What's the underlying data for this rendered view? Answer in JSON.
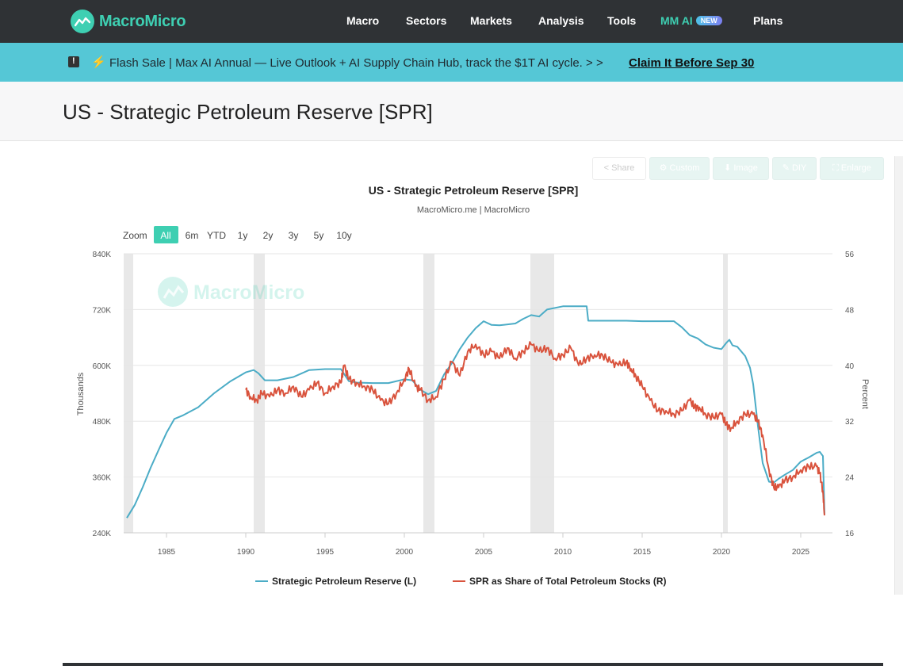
{
  "brand": {
    "name": "MacroMicro"
  },
  "nav": {
    "items": [
      {
        "label": "Macro"
      },
      {
        "label": "Sectors"
      },
      {
        "label": "Markets"
      },
      {
        "label": "Analysis"
      },
      {
        "label": "Tools"
      },
      {
        "label": "MM AI",
        "badge": "NEW"
      },
      {
        "label": "Plans"
      }
    ]
  },
  "promo": {
    "text": "Flash Sale | Max AI Annual — Live Outlook + AI Supply Chain Hub, track the $1T AI cycle. > >",
    "cta": "Claim It Before Sep 30"
  },
  "page": {
    "title": "US - Strategic Petroleum Reserve [SPR]"
  },
  "toolbar": {
    "share": "Share",
    "custom": "Custom",
    "image": "Image",
    "diy": "DIY",
    "enlarge": "Enlarge"
  },
  "zoom": {
    "label": "Zoom",
    "options": [
      "All",
      "6m",
      "YTD",
      "1y",
      "2y",
      "3y",
      "5y",
      "10y"
    ],
    "selected": "All"
  },
  "watermark": "MacroMicro",
  "colors": {
    "spr": "#4bacc6",
    "share": "#d9533d",
    "accent": "#3ecfb2",
    "recession": "#e8e8e8"
  },
  "chart_data": {
    "type": "line",
    "title": "US - Strategic Petroleum Reserve [SPR]",
    "subtitle": "MacroMicro.me | MacroMicro",
    "ylabel_left": "Thousands",
    "ylabel_right": "Percent",
    "xlim": [
      1982.3,
      2027.0
    ],
    "ylim_left": [
      240,
      840
    ],
    "ylim_right": [
      16,
      56
    ],
    "x_ticks": [
      "1985",
      "1990",
      "1995",
      "2000",
      "2005",
      "2010",
      "2015",
      "2020",
      "2025"
    ],
    "y_ticks_left": [
      "240K",
      "360K",
      "480K",
      "600K",
      "720K",
      "840K"
    ],
    "y_ticks_right": [
      "16",
      "24",
      "32",
      "40",
      "48",
      "56"
    ],
    "grid": "horizontal",
    "legend": "bottom-center",
    "recessions": [
      [
        1982.3,
        1982.9
      ],
      [
        1990.5,
        1991.2
      ],
      [
        2001.2,
        2001.9
      ],
      [
        2007.95,
        2009.45
      ],
      [
        2020.1,
        2020.4
      ]
    ],
    "series": [
      {
        "name": "Strategic Petroleum Reserve (L)",
        "axis": "left",
        "x": [
          1982.5,
          1983.0,
          1983.5,
          1984.0,
          1984.5,
          1985.0,
          1985.5,
          1986.0,
          1987.0,
          1988.0,
          1989.0,
          1990.0,
          1990.5,
          1990.8,
          1991.2,
          1992.0,
          1993.0,
          1994.0,
          1995.0,
          1996.0,
          1996.5,
          1997.0,
          1998.0,
          1999.0,
          2000.0,
          2000.5,
          2001.0,
          2001.5,
          2002.0,
          2002.5,
          2003.0,
          2003.5,
          2004.0,
          2004.5,
          2005.0,
          2005.5,
          2006.0,
          2007.0,
          2007.5,
          2008.0,
          2008.5,
          2009.0,
          2010.0,
          2011.0,
          2011.5,
          2011.6,
          2012.0,
          2013.0,
          2014.0,
          2015.0,
          2016.0,
          2017.0,
          2017.5,
          2018.0,
          2018.5,
          2019.0,
          2019.5,
          2020.0,
          2020.3,
          2020.5,
          2020.7,
          2021.0,
          2021.5,
          2021.8,
          2022.0,
          2022.3,
          2022.6,
          2023.0,
          2023.3,
          2023.6,
          2024.0,
          2024.5,
          2025.0,
          2025.5,
          2026.0,
          2026.2,
          2026.4,
          2026.5
        ],
        "values": [
          272,
          300,
          338,
          380,
          418,
          455,
          485,
          492,
          510,
          540,
          565,
          585,
          590,
          583,
          568,
          568,
          575,
          590,
          592,
          592,
          566,
          563,
          562,
          562,
          570,
          568,
          548,
          538,
          545,
          580,
          605,
          635,
          660,
          680,
          695,
          687,
          686,
          690,
          700,
          708,
          705,
          720,
          727,
          727,
          727,
          696,
          696,
          696,
          696,
          695,
          695,
          695,
          682,
          665,
          658,
          645,
          638,
          635,
          648,
          655,
          643,
          640,
          620,
          595,
          560,
          470,
          390,
          350,
          348,
          356,
          365,
          375,
          393,
          402,
          412,
          414,
          405,
          280
        ]
      },
      {
        "name": "SPR as Share of Total Petroleum Stocks (R)",
        "axis": "right",
        "x": [
          1990.0,
          1990.3,
          1990.7,
          1991.0,
          1991.5,
          1992.0,
          1992.5,
          1993.0,
          1993.5,
          1994.0,
          1994.5,
          1995.0,
          1995.5,
          1996.0,
          1996.2,
          1996.5,
          1997.0,
          1997.5,
          1998.0,
          1998.5,
          1999.0,
          1999.5,
          2000.0,
          2000.3,
          2000.7,
          2001.0,
          2001.5,
          2002.0,
          2002.5,
          2003.0,
          2003.5,
          2004.0,
          2004.5,
          2005.0,
          2005.5,
          2006.0,
          2006.5,
          2007.0,
          2007.5,
          2008.0,
          2008.5,
          2009.0,
          2009.5,
          2010.0,
          2010.5,
          2011.0,
          2011.5,
          2012.0,
          2012.5,
          2013.0,
          2013.5,
          2014.0,
          2014.3,
          2014.6,
          2015.0,
          2015.5,
          2016.0,
          2016.5,
          2017.0,
          2017.5,
          2018.0,
          2018.3,
          2018.6,
          2019.0,
          2019.5,
          2020.0,
          2020.3,
          2020.6,
          2021.0,
          2021.5,
          2022.0,
          2022.3,
          2022.6,
          2023.0,
          2023.3,
          2023.6,
          2024.0,
          2024.5,
          2025.0,
          2025.5,
          2026.0,
          2026.2,
          2026.4,
          2026.5
        ],
        "values": [
          36.5,
          35.5,
          35.0,
          36.0,
          35.5,
          36.5,
          36.0,
          37.0,
          35.5,
          36.5,
          37.5,
          36.0,
          37.0,
          37.5,
          40.0,
          38.0,
          37.5,
          37.0,
          36.5,
          35.0,
          34.5,
          36.0,
          38.0,
          39.5,
          37.0,
          36.5,
          35.0,
          35.5,
          38.0,
          40.5,
          38.5,
          42.0,
          43.0,
          41.5,
          42.0,
          41.0,
          42.5,
          41.0,
          42.0,
          43.0,
          42.0,
          42.5,
          41.0,
          41.5,
          42.5,
          40.0,
          41.0,
          41.5,
          41.5,
          40.5,
          40.0,
          40.5,
          39.5,
          38.5,
          37.0,
          35.0,
          33.5,
          33.5,
          33.0,
          33.5,
          35.0,
          34.0,
          34.0,
          33.0,
          32.5,
          33.0,
          31.5,
          31.0,
          32.0,
          33.0,
          33.0,
          32.0,
          30.0,
          25.0,
          22.5,
          22.5,
          23.5,
          24.0,
          25.0,
          25.5,
          25.5,
          24.5,
          22.0,
          18.5
        ]
      }
    ]
  }
}
